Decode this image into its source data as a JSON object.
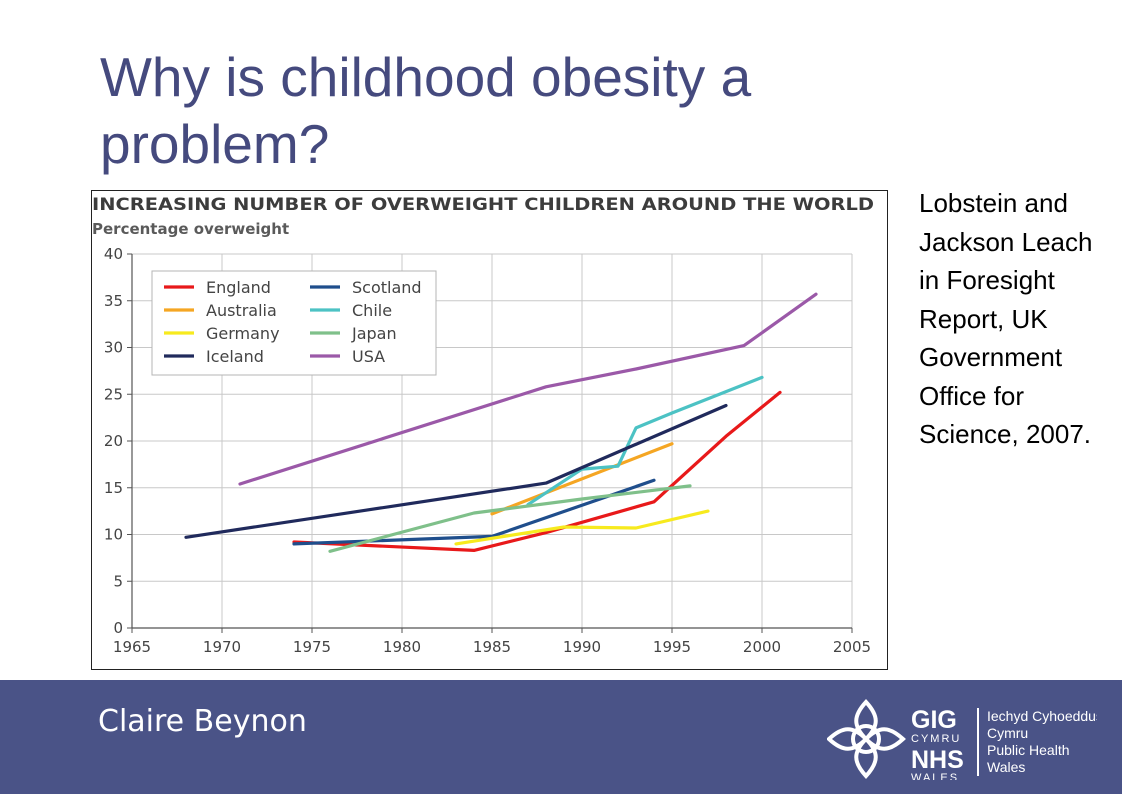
{
  "slide": {
    "title": "Why is childhood obesity a problem?",
    "citation": "Lobstein and Jackson Leach in Foresight Report, UK Government Office for Science, 2007."
  },
  "footer": {
    "author": "Claire Beynon",
    "background_color": "#4a5387",
    "logo": {
      "icon": "celtic-knot-icon",
      "gig": "GIG",
      "cymru": "CYMRU",
      "nhs": "NHS",
      "wales": "WALES",
      "welsh_name_line1": "Iechyd Cyhoeddus",
      "welsh_name_line2": "Cymru",
      "english_name_line1": "Public Health",
      "english_name_line2": "Wales"
    }
  },
  "chart_data": {
    "type": "line",
    "title": "INCREASING NUMBER OF OVERWEIGHT CHILDREN AROUND THE WORLD",
    "ylabel": "Percentage overweight",
    "xlabel": "",
    "xlim": [
      1965,
      2005
    ],
    "ylim": [
      0,
      40
    ],
    "x_ticks": [
      1965,
      1970,
      1975,
      1980,
      1985,
      1990,
      1995,
      2000,
      2005
    ],
    "y_ticks": [
      0,
      5,
      10,
      15,
      20,
      25,
      30,
      35,
      40
    ],
    "grid": true,
    "legend_position": "top-left",
    "series": [
      {
        "name": "England",
        "color": "#e8191a",
        "points": [
          [
            1974,
            9.2
          ],
          [
            1984,
            8.3
          ],
          [
            1988,
            10.2
          ],
          [
            1994,
            13.5
          ],
          [
            1998,
            20.5
          ],
          [
            2001,
            25.2
          ]
        ]
      },
      {
        "name": "Scotland",
        "color": "#1f4e8c",
        "points": [
          [
            1974,
            9.0
          ],
          [
            1985,
            9.8
          ],
          [
            1994,
            15.8
          ]
        ]
      },
      {
        "name": "Australia",
        "color": "#f5a623",
        "points": [
          [
            1985,
            12.2
          ],
          [
            1995,
            19.7
          ]
        ]
      },
      {
        "name": "Chile",
        "color": "#4cc2c4",
        "points": [
          [
            1987,
            13.2
          ],
          [
            1990,
            17.0
          ],
          [
            1992,
            17.3
          ],
          [
            1993,
            21.4
          ],
          [
            1995,
            23.0
          ],
          [
            2000,
            26.8
          ]
        ]
      },
      {
        "name": "Germany",
        "color": "#f7ea1e",
        "points": [
          [
            1983,
            9.0
          ],
          [
            1989,
            10.8
          ],
          [
            1993,
            10.7
          ],
          [
            1997,
            12.5
          ]
        ]
      },
      {
        "name": "Japan",
        "color": "#7fc08a",
        "points": [
          [
            1976,
            8.2
          ],
          [
            1984,
            12.3
          ],
          [
            1990,
            13.8
          ],
          [
            1996,
            15.2
          ]
        ]
      },
      {
        "name": "Iceland",
        "color": "#202a5c",
        "points": [
          [
            1968,
            9.7
          ],
          [
            1988,
            15.5
          ],
          [
            1998,
            23.8
          ]
        ]
      },
      {
        "name": "USA",
        "color": "#9b59a8",
        "points": [
          [
            1971,
            15.4
          ],
          [
            1988,
            25.8
          ],
          [
            1993,
            27.7
          ],
          [
            1999,
            30.2
          ],
          [
            2003,
            35.7
          ]
        ]
      }
    ]
  }
}
